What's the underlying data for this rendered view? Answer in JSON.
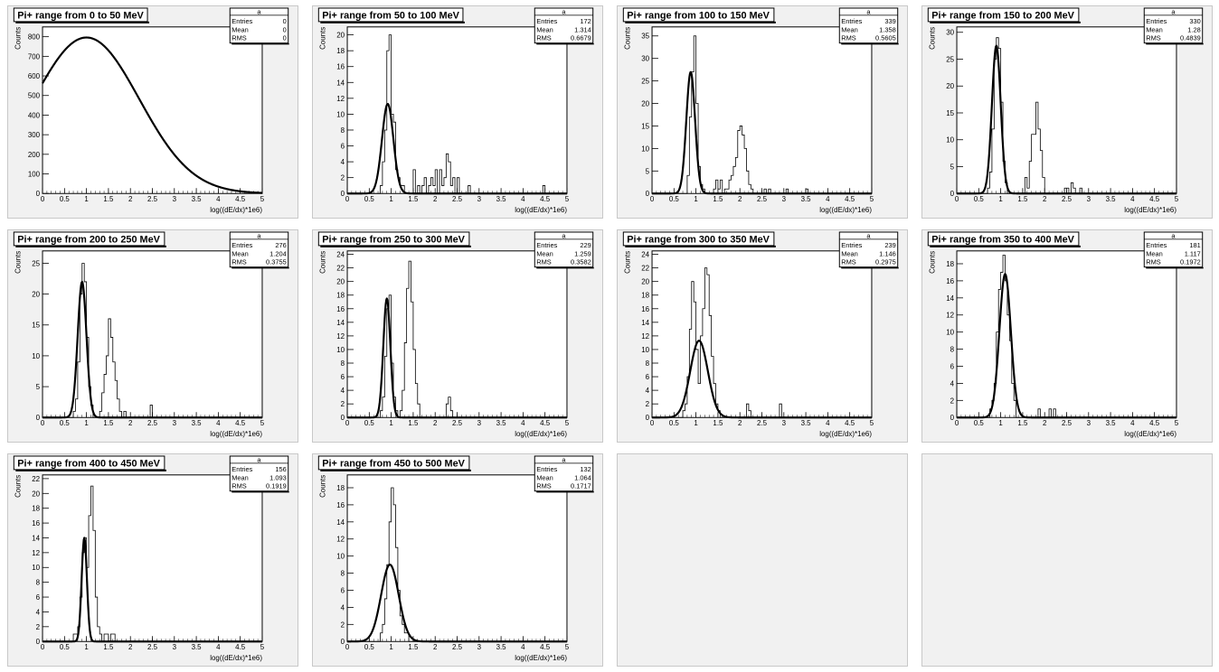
{
  "canvas": {
    "background": "#ffffff",
    "pad_fill": "#f1f1f1",
    "frame_fill": "#ffffff",
    "line_color": "#000000"
  },
  "stats_labels": {
    "name": "a",
    "entries": "Entries",
    "mean": "Mean",
    "rms": "RMS"
  },
  "empty_pads": 2,
  "chart_data": [
    {
      "type": "line",
      "title": "Pi+ range from 0 to 50 MeV",
      "xlabel": "log((dE/dx)*1e6)",
      "ylabel": "Counts",
      "xlim": [
        0,
        5
      ],
      "ylim": [
        0,
        850
      ],
      "yticks": [
        0,
        100,
        200,
        300,
        400,
        500,
        600,
        700,
        800
      ],
      "stats": {
        "entries": "0",
        "mean": "0",
        "rms": "0"
      },
      "histogram": {
        "x0": 0,
        "bin_width": 0.05,
        "counts": []
      },
      "fit": {
        "type": "gaus",
        "constant": 796,
        "mean": 1.0,
        "sigma": 1.2
      }
    },
    {
      "type": "line",
      "title": "Pi+ range from 50 to 100 MeV",
      "xlabel": "log((dE/dx)*1e6)",
      "ylabel": "Counts",
      "xlim": [
        0,
        5
      ],
      "ylim": [
        0,
        21
      ],
      "yticks": [
        0,
        2,
        4,
        6,
        8,
        10,
        12,
        14,
        16,
        18,
        20
      ],
      "stats": {
        "entries": "172",
        "mean": "1.314",
        "rms": "0.6679"
      },
      "histogram": {
        "x0": 0,
        "bin_width": 0.05,
        "counts": [
          0,
          0,
          0,
          0,
          0,
          0,
          0,
          0,
          0,
          0,
          0,
          0,
          0,
          0,
          0,
          1,
          4,
          8,
          18,
          20,
          10,
          9,
          3,
          2,
          1,
          1,
          0,
          0,
          0,
          0,
          3,
          0,
          1,
          0,
          1,
          2,
          0,
          1,
          2,
          1,
          3,
          0,
          3,
          1,
          2,
          5,
          4,
          1,
          2,
          0,
          2,
          0,
          0,
          0,
          0,
          1,
          0,
          0,
          0,
          0,
          0,
          0,
          0,
          0,
          0,
          0,
          0,
          0,
          0,
          0,
          0,
          0,
          0,
          0,
          0,
          0,
          0,
          0,
          0,
          0,
          0,
          0,
          0,
          0,
          0,
          0,
          0,
          0,
          0,
          1,
          0,
          0,
          0,
          0,
          0,
          0,
          0,
          0,
          0,
          0
        ]
      },
      "fit": {
        "type": "gaus",
        "constant": 11.3,
        "mean": 0.92,
        "sigma": 0.13
      }
    },
    {
      "type": "line",
      "title": "Pi+ range from 100 to 150 MeV",
      "xlabel": "log((dE/dx)*1e6)",
      "ylabel": "Counts",
      "xlim": [
        0,
        5
      ],
      "ylim": [
        0,
        37
      ],
      "yticks": [
        0,
        5,
        10,
        15,
        20,
        25,
        30,
        35
      ],
      "stats": {
        "entries": "339",
        "mean": "1.358",
        "rms": "0.5605"
      },
      "histogram": {
        "x0": 0,
        "bin_width": 0.05,
        "counts": [
          0,
          0,
          0,
          0,
          0,
          0,
          0,
          0,
          0,
          0,
          0,
          0,
          0,
          0,
          0,
          0,
          4,
          17,
          27,
          35,
          20,
          6,
          2,
          1,
          0,
          0,
          0,
          0,
          1,
          3,
          1,
          3,
          0,
          1,
          1,
          3,
          4,
          6,
          8,
          14,
          15,
          13,
          10,
          5,
          2,
          1,
          0,
          0,
          0,
          0,
          0,
          1,
          0,
          1,
          0,
          0,
          0,
          0,
          0,
          0,
          0,
          1,
          0,
          0,
          0,
          0,
          0,
          0,
          0,
          0,
          1,
          0,
          0,
          0,
          0,
          0,
          0,
          0,
          0,
          0,
          0,
          0,
          0,
          0,
          0,
          0,
          0,
          0,
          0,
          0,
          0,
          0,
          0,
          0,
          0,
          0,
          0,
          0,
          0,
          0
        ]
      },
      "fit": {
        "type": "gaus",
        "constant": 27,
        "mean": 0.88,
        "sigma": 0.1
      }
    },
    {
      "type": "line",
      "title": "Pi+ range from 150 to 200 MeV",
      "xlabel": "log((dE/dx)*1e6)",
      "ylabel": "Counts",
      "xlim": [
        0,
        5
      ],
      "ylim": [
        0,
        31
      ],
      "yticks": [
        0,
        5,
        10,
        15,
        20,
        25,
        30
      ],
      "stats": {
        "entries": "330",
        "mean": "1.28",
        "rms": "0.4839"
      },
      "histogram": {
        "x0": 0,
        "bin_width": 0.05,
        "counts": [
          0,
          0,
          0,
          0,
          0,
          0,
          0,
          0,
          0,
          0,
          0,
          0,
          0,
          0,
          1,
          4,
          12,
          25,
          29,
          27,
          17,
          6,
          2,
          0,
          0,
          0,
          0,
          0,
          0,
          0,
          0,
          3,
          1,
          6,
          11,
          11,
          17,
          12,
          8,
          3,
          0,
          0,
          0,
          0,
          0,
          0,
          0,
          0,
          0,
          1,
          1,
          0,
          2,
          1,
          0,
          0,
          1,
          0,
          0,
          0,
          0,
          0,
          0,
          0,
          0,
          0,
          0,
          0,
          0,
          0,
          0,
          0,
          0,
          0,
          0,
          0,
          0,
          0,
          0,
          0,
          0,
          0,
          0,
          0,
          0,
          0,
          0,
          0,
          0,
          0,
          0,
          0,
          0,
          0,
          0,
          0,
          0,
          0,
          0,
          0
        ]
      },
      "fit": {
        "type": "gaus",
        "constant": 27.5,
        "mean": 0.9,
        "sigma": 0.1
      }
    },
    {
      "type": "line",
      "title": "Pi+ range from 200 to 250 MeV",
      "xlabel": "log((dE/dx)*1e6)",
      "ylabel": "Counts",
      "xlim": [
        0,
        5
      ],
      "ylim": [
        0,
        27
      ],
      "yticks": [
        0,
        5,
        10,
        15,
        20,
        25
      ],
      "stats": {
        "entries": "276",
        "mean": "1.204",
        "rms": "0.3755"
      },
      "histogram": {
        "x0": 0,
        "bin_width": 0.05,
        "counts": [
          0,
          0,
          0,
          0,
          0,
          0,
          0,
          0,
          0,
          0,
          0,
          0,
          0,
          0,
          1,
          3,
          9,
          20,
          25,
          22,
          13,
          5,
          2,
          0,
          0,
          0,
          1,
          4,
          7,
          10,
          16,
          13,
          9,
          6,
          3,
          1,
          0,
          1,
          0,
          0,
          0,
          0,
          0,
          0,
          0,
          0,
          0,
          0,
          0,
          2,
          0,
          0,
          0,
          0,
          0,
          0,
          0,
          0,
          0,
          0,
          0,
          0,
          0,
          0,
          0,
          0,
          0,
          0,
          0,
          0,
          0,
          0,
          0,
          0,
          0,
          0,
          0,
          0,
          0,
          0,
          0,
          0,
          0,
          0,
          0,
          0,
          0,
          0,
          0,
          0,
          0,
          0,
          0,
          0,
          0,
          0,
          0,
          0,
          0,
          0
        ]
      },
      "fit": {
        "type": "gaus",
        "constant": 22,
        "mean": 0.9,
        "sigma": 0.1
      }
    },
    {
      "type": "line",
      "title": "Pi+ range from 250 to 300 MeV",
      "xlabel": "log((dE/dx)*1e6)",
      "ylabel": "Counts",
      "xlim": [
        0,
        5
      ],
      "ylim": [
        0,
        24.5
      ],
      "yticks": [
        0,
        2,
        4,
        6,
        8,
        10,
        12,
        14,
        16,
        18,
        20,
        22,
        24
      ],
      "stats": {
        "entries": "229",
        "mean": "1.259",
        "rms": "0.3582"
      },
      "histogram": {
        "x0": 0,
        "bin_width": 0.05,
        "counts": [
          0,
          0,
          0,
          0,
          0,
          0,
          0,
          0,
          0,
          0,
          0,
          0,
          0,
          0,
          0,
          1,
          3,
          9,
          16,
          18,
          8,
          3,
          1,
          0,
          1,
          4,
          11,
          19,
          23,
          17,
          10,
          5,
          2,
          0,
          0,
          0,
          0,
          0,
          0,
          0,
          0,
          0,
          0,
          0,
          0,
          2,
          3,
          1,
          0,
          0,
          0,
          0,
          0,
          0,
          0,
          0,
          0,
          0,
          0,
          0,
          0,
          0,
          0,
          0,
          0,
          0,
          0,
          0,
          0,
          0,
          0,
          0,
          0,
          0,
          0,
          0,
          0,
          0,
          0,
          0,
          0,
          0,
          0,
          0,
          0,
          0,
          0,
          0,
          0,
          0,
          0,
          0,
          0,
          0,
          0,
          0,
          0,
          0,
          0,
          0
        ]
      },
      "fit": {
        "type": "gaus",
        "constant": 17.5,
        "mean": 0.9,
        "sigma": 0.08
      }
    },
    {
      "type": "line",
      "title": "Pi+ range from 300 to 350 MeV",
      "xlabel": "log((dE/dx)*1e6)",
      "ylabel": "Counts",
      "xlim": [
        0,
        5
      ],
      "ylim": [
        0,
        24.5
      ],
      "yticks": [
        0,
        2,
        4,
        6,
        8,
        10,
        12,
        14,
        16,
        18,
        20,
        22,
        24
      ],
      "stats": {
        "entries": "239",
        "mean": "1.146",
        "rms": "0.2975"
      },
      "histogram": {
        "x0": 0,
        "bin_width": 0.05,
        "counts": [
          0,
          0,
          0,
          0,
          0,
          0,
          0,
          0,
          0,
          0,
          0,
          0,
          0,
          0,
          1,
          2,
          6,
          13,
          20,
          17,
          10,
          5,
          12,
          16,
          22,
          21,
          15,
          9,
          5,
          2,
          1,
          0,
          0,
          0,
          0,
          0,
          0,
          0,
          0,
          0,
          0,
          0,
          0,
          2,
          1,
          0,
          0,
          0,
          0,
          0,
          0,
          0,
          0,
          0,
          0,
          0,
          0,
          0,
          2,
          0,
          0,
          0,
          0,
          0,
          0,
          0,
          0,
          0,
          0,
          0,
          0,
          0,
          0,
          0,
          0,
          0,
          0,
          0,
          0,
          0,
          0,
          0,
          0,
          0,
          0,
          0,
          0,
          0,
          0,
          0,
          0,
          0,
          0,
          0,
          0,
          0,
          0,
          0,
          0,
          0
        ]
      },
      "fit": {
        "type": "gaus",
        "constant": 11.3,
        "mean": 1.07,
        "sigma": 0.2
      }
    },
    {
      "type": "line",
      "title": "Pi+ range from 350 to 400 MeV",
      "xlabel": "log((dE/dx)*1e6)",
      "ylabel": "Counts",
      "xlim": [
        0,
        5
      ],
      "ylim": [
        0,
        19.5
      ],
      "yticks": [
        0,
        2,
        4,
        6,
        8,
        10,
        12,
        14,
        16,
        18
      ],
      "stats": {
        "entries": "181",
        "mean": "1.117",
        "rms": "0.1972"
      },
      "histogram": {
        "x0": 0,
        "bin_width": 0.05,
        "counts": [
          0,
          0,
          0,
          0,
          0,
          0,
          0,
          0,
          0,
          0,
          0,
          0,
          0,
          0,
          0,
          1,
          2,
          4,
          10,
          15,
          17,
          19,
          16,
          12,
          9,
          4,
          2,
          0,
          0,
          0,
          0,
          0,
          0,
          0,
          0,
          0,
          0,
          1,
          0,
          0,
          0,
          0,
          1,
          0,
          1,
          0,
          0,
          0,
          0,
          0,
          0,
          0,
          0,
          0,
          0,
          0,
          0,
          0,
          0,
          0,
          0,
          0,
          0,
          0,
          0,
          0,
          0,
          0,
          0,
          0,
          0,
          0,
          0,
          0,
          0,
          0,
          0,
          0,
          0,
          0,
          0,
          0,
          0,
          0,
          0,
          0,
          0,
          0,
          0,
          0,
          0,
          0,
          0,
          0,
          0,
          0,
          0,
          0,
          0,
          0
        ]
      },
      "fit": {
        "type": "gaus",
        "constant": 16.8,
        "mean": 1.1,
        "sigma": 0.13
      }
    },
    {
      "type": "line",
      "title": "Pi+ range from 400 to 450 MeV",
      "xlabel": "log((dE/dx)*1e6)",
      "ylabel": "Counts",
      "xlim": [
        0,
        5
      ],
      "ylim": [
        0,
        22.5
      ],
      "yticks": [
        0,
        2,
        4,
        6,
        8,
        10,
        12,
        14,
        16,
        18,
        20,
        22
      ],
      "stats": {
        "entries": "156",
        "mean": "1.093",
        "rms": "0.1919"
      },
      "histogram": {
        "x0": 0,
        "bin_width": 0.05,
        "counts": [
          0,
          0,
          0,
          0,
          0,
          0,
          0,
          0,
          0,
          0,
          0,
          0,
          0,
          0,
          1,
          1,
          2,
          6,
          12,
          14,
          10,
          17,
          21,
          15,
          6,
          2,
          1,
          0,
          1,
          1,
          0,
          1,
          1,
          0,
          0,
          0,
          0,
          0,
          0,
          0,
          0,
          0,
          0,
          0,
          0,
          0,
          0,
          0,
          0,
          0,
          0,
          0,
          0,
          0,
          0,
          0,
          0,
          0,
          0,
          0,
          0,
          0,
          0,
          0,
          0,
          0,
          0,
          0,
          0,
          0,
          0,
          0,
          0,
          0,
          0,
          0,
          0,
          0,
          0,
          0,
          0,
          0,
          0,
          0,
          0,
          0,
          0,
          0,
          0,
          0,
          0,
          0,
          0,
          0,
          0,
          0,
          0,
          0,
          0,
          0
        ]
      },
      "fit": {
        "type": "gaus",
        "constant": 14,
        "mean": 0.95,
        "sigma": 0.06
      }
    },
    {
      "type": "line",
      "title": "Pi+ range from 450 to 500 MeV",
      "xlabel": "log((dE/dx)*1e6)",
      "ylabel": "Counts",
      "xlim": [
        0,
        5
      ],
      "ylim": [
        0,
        19.5
      ],
      "yticks": [
        0,
        2,
        4,
        6,
        8,
        10,
        12,
        14,
        16,
        18
      ],
      "stats": {
        "entries": "132",
        "mean": "1.064",
        "rms": "0.1717"
      },
      "histogram": {
        "x0": 0,
        "bin_width": 0.05,
        "counts": [
          0,
          0,
          0,
          0,
          0,
          0,
          0,
          0,
          0,
          0,
          0,
          0,
          0,
          0,
          0,
          1,
          2,
          5,
          9,
          14,
          18,
          16,
          11,
          6,
          3,
          2,
          1,
          1,
          0,
          0,
          0,
          0,
          0,
          0,
          0,
          0,
          0,
          0,
          0,
          0,
          0,
          0,
          0,
          0,
          0,
          0,
          0,
          0,
          0,
          0,
          0,
          0,
          0,
          0,
          0,
          0,
          0,
          0,
          0,
          0,
          0,
          0,
          0,
          0,
          0,
          0,
          0,
          0,
          0,
          0,
          0,
          0,
          0,
          0,
          0,
          0,
          0,
          0,
          0,
          0,
          0,
          0,
          0,
          0,
          0,
          0,
          0,
          0,
          0,
          0,
          0,
          0,
          0,
          0,
          0,
          0,
          0,
          0,
          0,
          0
        ]
      },
      "fit": {
        "type": "gaus",
        "constant": 9,
        "mean": 0.97,
        "sigma": 0.2
      }
    }
  ]
}
